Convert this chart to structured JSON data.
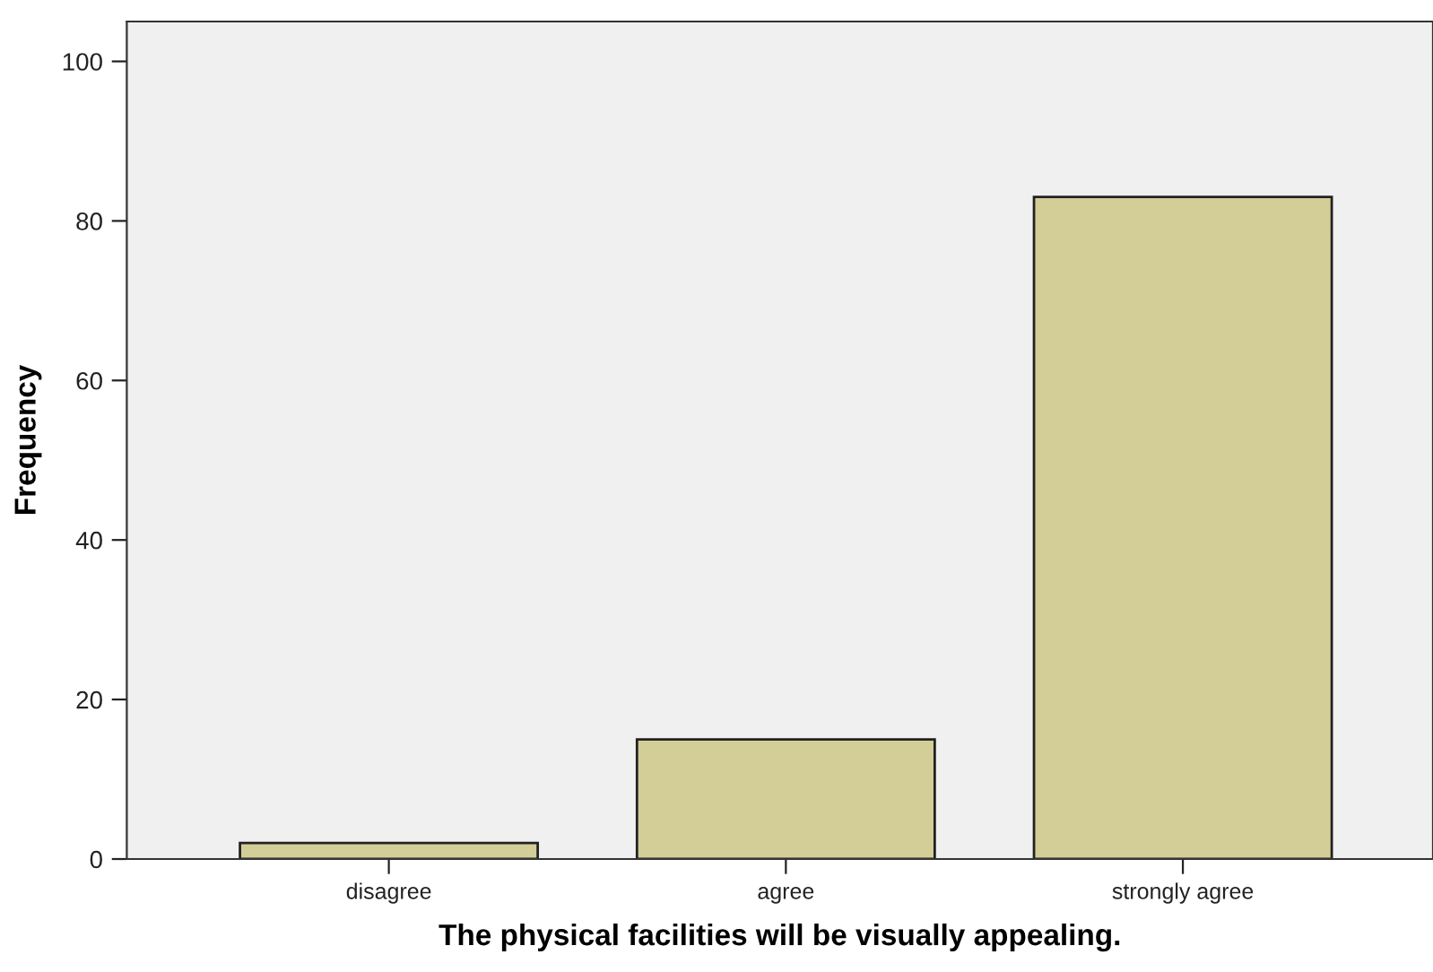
{
  "chart_data": {
    "type": "bar",
    "xlabel": "The physical facilities will be visually appealing.",
    "ylabel": "Frequency",
    "categories": [
      "disagree",
      "agree",
      "strongly agree"
    ],
    "values": [
      2,
      15,
      83
    ],
    "color": "#d3ce97",
    "ylim": [
      0,
      105
    ],
    "yticks": [
      0,
      20,
      40,
      60,
      80,
      100
    ],
    "grid": false,
    "legend": false
  }
}
